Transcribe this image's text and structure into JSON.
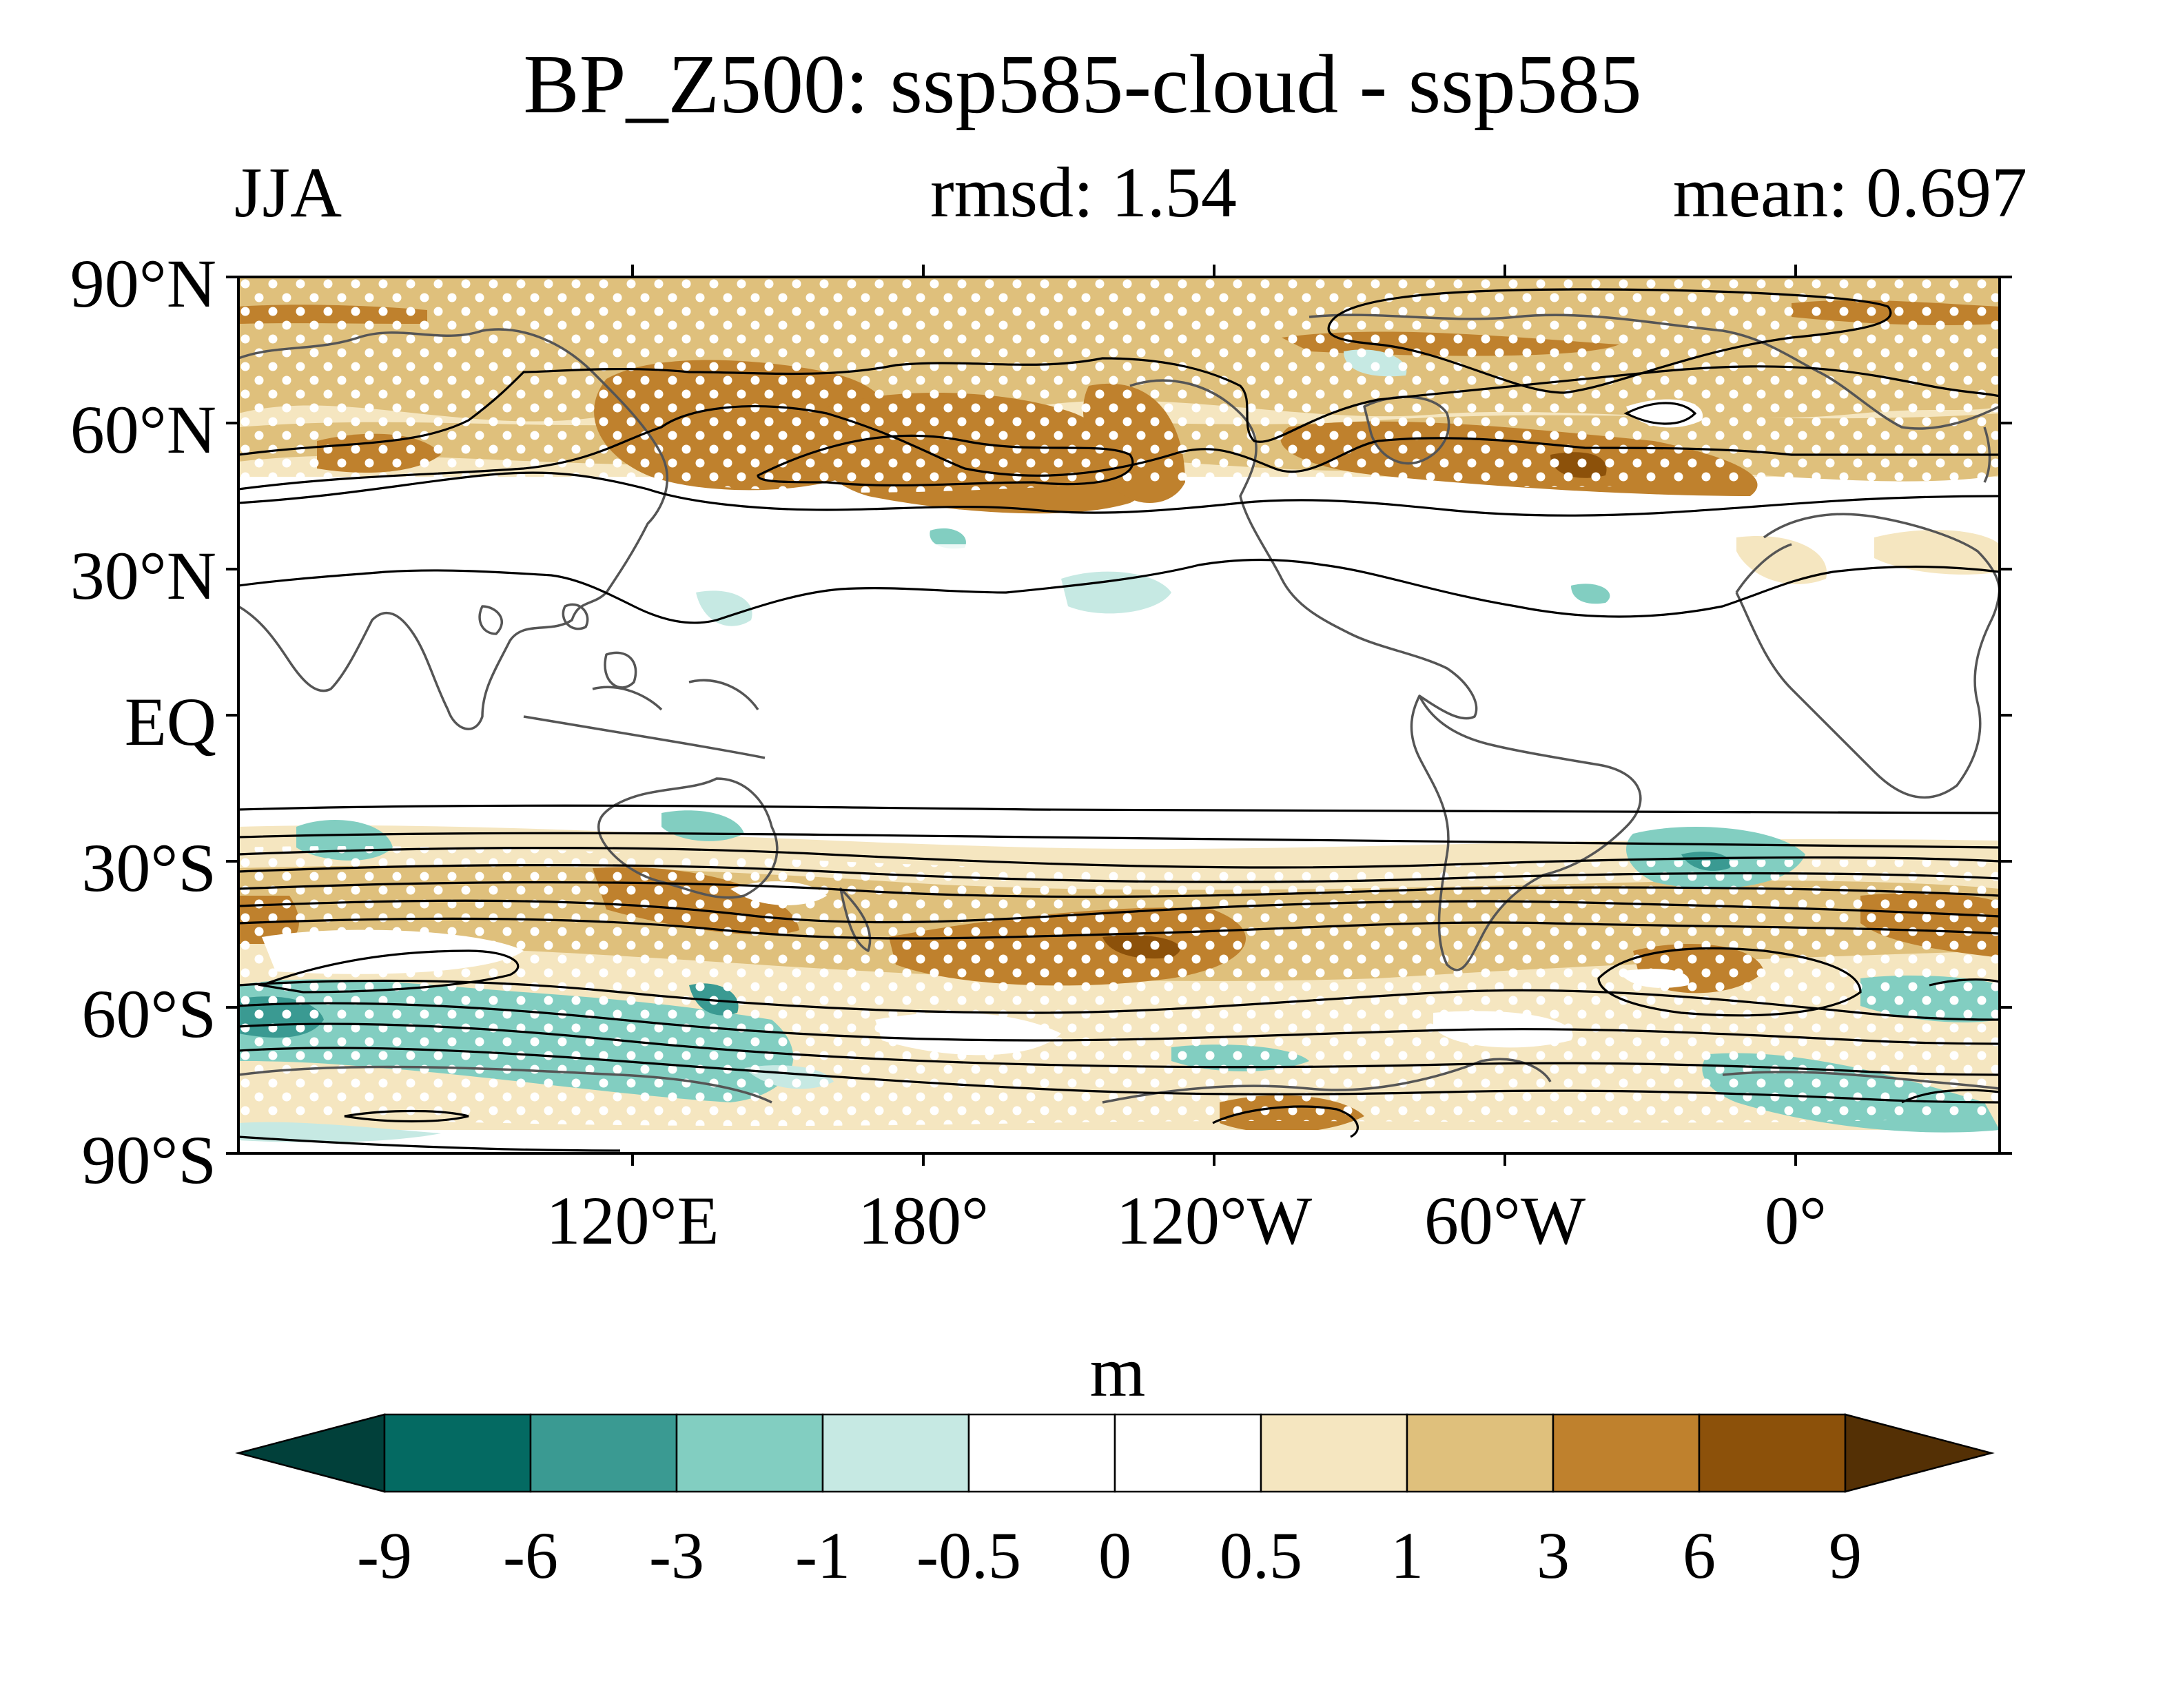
{
  "title": "BP_Z500: ssp585-cloud - ssp585",
  "season": "JJA",
  "rmsd": "rmsd: 1.54",
  "mean": "mean: 0.697",
  "lat_labels": [
    "90°N",
    "60°N",
    "30°N",
    "EQ",
    "30°S",
    "60°S",
    "90°S"
  ],
  "lon_labels": [
    "120°E",
    "180°",
    "120°W",
    "60°W",
    "0°"
  ],
  "colorbar": {
    "unit": "m",
    "ticks": [
      "-9",
      "-6",
      "-3",
      "-1",
      "-0.5",
      "0",
      "0.5",
      "1",
      "3",
      "6",
      "9"
    ],
    "colors": [
      "#01403a",
      "#046a62",
      "#3a9a92",
      "#82cec1",
      "#c6e9e3",
      "#ffffff",
      "#ffffff",
      "#f5e6c0",
      "#dfc07c",
      "#bf812d",
      "#8c510a",
      "#543005"
    ]
  },
  "map": {
    "projection": "equirectangular",
    "lon_range": [
      30,
      390
    ],
    "lat_range": [
      -90,
      90
    ],
    "stippling": "white dots",
    "contours": "black lines"
  }
}
